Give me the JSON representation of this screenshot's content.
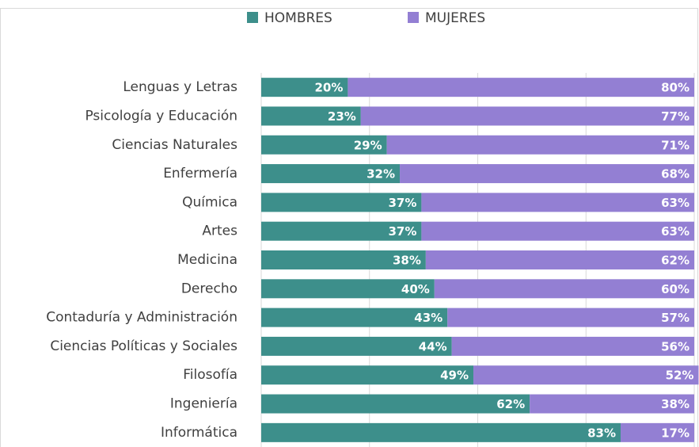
{
  "chart_data": {
    "type": "stacked-bar-horizontal",
    "categories": [
      "Lenguas y Letras",
      "Psicología y Educación",
      "Ciencias Naturales",
      "Enfermería",
      "Química",
      "Artes",
      "Medicina",
      "Derecho",
      "Contaduría y Administración",
      "Ciencias Políticas y Sociales",
      "Filosofía",
      "Ingeniería",
      "Informática"
    ],
    "series": [
      {
        "name": "HOMBRES",
        "color": "#3d8f8b",
        "values": [
          20,
          23,
          29,
          32,
          37,
          37,
          38,
          40,
          43,
          44,
          49,
          62,
          83
        ],
        "value_labels": [
          "20%",
          "23%",
          "29%",
          "32%",
          "37%",
          "37%",
          "38%",
          "40%",
          "43%",
          "44%",
          "49%",
          "62%",
          "83%"
        ]
      },
      {
        "name": "MUJERES",
        "color": "#937fd3",
        "values": [
          80,
          77,
          71,
          68,
          63,
          63,
          62,
          60,
          57,
          56,
          52,
          38,
          17
        ],
        "value_labels": [
          "80%",
          "77%",
          "71%",
          "68%",
          "63%",
          "63%",
          "62%",
          "60%",
          "57%",
          "56%",
          "52%",
          "38%",
          "17%"
        ]
      }
    ],
    "xlim": [
      0,
      100
    ],
    "xticks": [
      0,
      25,
      50,
      75,
      100
    ],
    "grid": true,
    "legend": "top"
  }
}
